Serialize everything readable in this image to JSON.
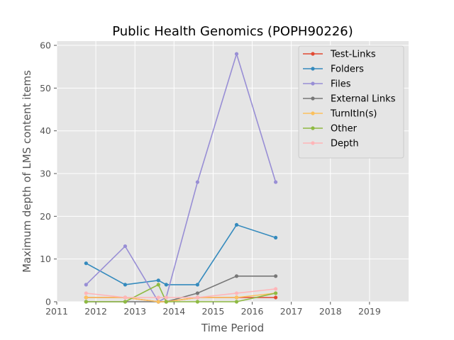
{
  "chart_data": {
    "type": "line",
    "title": "Public Health Genomics (POPH90226)",
    "xlabel": "Time Period",
    "ylabel": "Maximum depth of LMS content items",
    "xlim": [
      2011,
      2020
    ],
    "ylim": [
      0,
      61
    ],
    "xticks": [
      "2011",
      "2012",
      "2013",
      "2014",
      "2015",
      "2016",
      "2017",
      "2018",
      "2019"
    ],
    "yticks": [
      "0",
      "10",
      "20",
      "30",
      "40",
      "50",
      "60"
    ],
    "grid": true,
    "legend_position": "top-right",
    "x": [
      2011.75,
      2012.75,
      2013.6,
      2013.8,
      2014.6,
      2015.6,
      2016.6
    ],
    "series": [
      {
        "name": "Test-Links",
        "color": "#e24a33",
        "values": [
          1,
          1,
          0,
          0,
          1,
          1,
          1
        ]
      },
      {
        "name": "Folders",
        "color": "#348abd",
        "values": [
          9,
          4,
          5,
          4,
          4,
          18,
          15
        ]
      },
      {
        "name": "Files",
        "color": "#988ed5",
        "values": [
          4,
          13,
          0,
          1,
          28,
          58,
          28
        ]
      },
      {
        "name": "External Links",
        "color": "#777777",
        "values": [
          0,
          0,
          0,
          0,
          2,
          6,
          6
        ]
      },
      {
        "name": "TurnItIn(s)",
        "color": "#fbc15e",
        "values": [
          1,
          1,
          0,
          0,
          1,
          1,
          2
        ]
      },
      {
        "name": "Other",
        "color": "#8eba42",
        "values": [
          0,
          0,
          4,
          0,
          0,
          0,
          2
        ]
      },
      {
        "name": "Depth",
        "color": "#ffb5b8",
        "values": [
          2,
          1,
          1,
          1,
          1,
          2,
          3
        ]
      }
    ]
  }
}
